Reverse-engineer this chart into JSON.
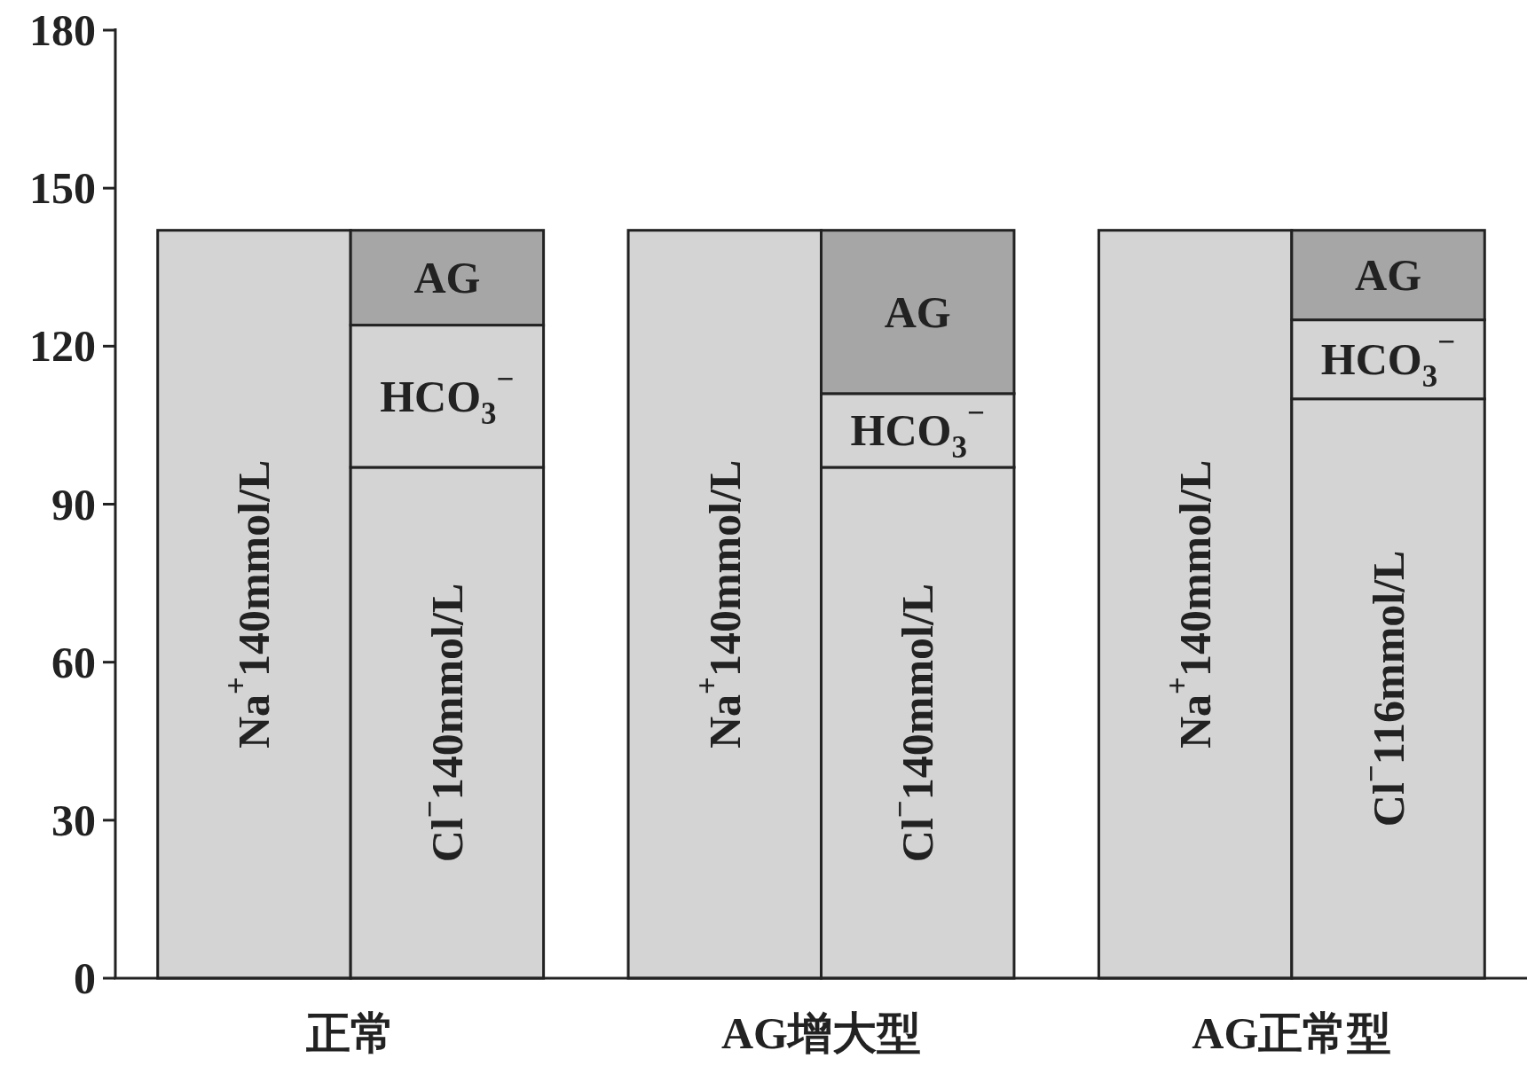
{
  "chart_data": {
    "type": "bar",
    "stacked": true,
    "categories": [
      null,
      null,
      null,
      null,
      null,
      null
    ],
    "ylim": [
      0,
      180
    ],
    "yticks": [
      0,
      30,
      60,
      90,
      120,
      150,
      180
    ],
    "grid": false,
    "series": [
      {
        "color": "#d4d4d4",
        "values": [
          142,
          null,
          142,
          null,
          142,
          null
        ]
      },
      {
        "color": "#d4d4d4",
        "values": [
          null,
          97,
          null,
          97,
          null,
          110
        ]
      },
      {
        "color": "#d4d4d4",
        "values": [
          null,
          27,
          null,
          14,
          null,
          15
        ]
      },
      {
        "color": "#a6a6a6",
        "values": [
          null,
          18,
          null,
          31,
          null,
          17
        ]
      }
    ],
    "annotations": [
      "正常",
      "AG增大型",
      "AG正常型",
      "Na$^{+}$140mmol/L",
      "Cl$^{−}$140mmol/L",
      "HCO$_{3}$$^{−}$",
      "AG",
      "Na$^{+}$140mmol/L",
      "Cl$^{−}$140mmol/L",
      "HCO$_{3}$$^{−}$",
      "AG",
      "Na$^{+}$140mmol/L",
      "Cl$^{−}$116mmol/L",
      "HCO$_{3}$$^{−}$",
      "AG"
    ]
  }
}
